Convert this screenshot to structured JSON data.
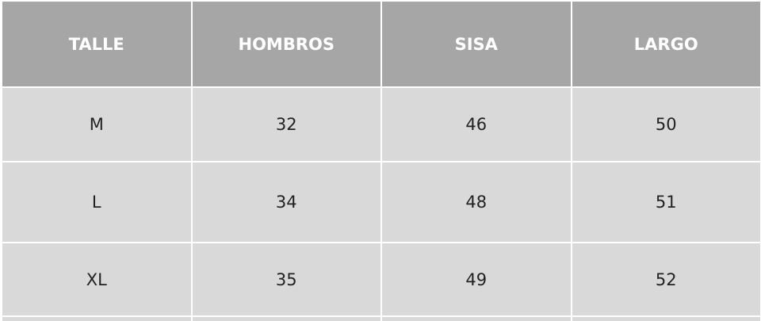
{
  "table": {
    "headers": [
      "TALLE",
      "HOMBROS",
      "SISA",
      "LARGO"
    ],
    "rows": [
      [
        "M",
        "32",
        "46",
        "50"
      ],
      [
        "L",
        "34",
        "48",
        "51"
      ],
      [
        "XL",
        "35",
        "49",
        "52"
      ]
    ]
  },
  "colors": {
    "header_bg": "#a6a6a6",
    "cell_bg": "#d9d9d9",
    "header_text": "#ffffff"
  }
}
